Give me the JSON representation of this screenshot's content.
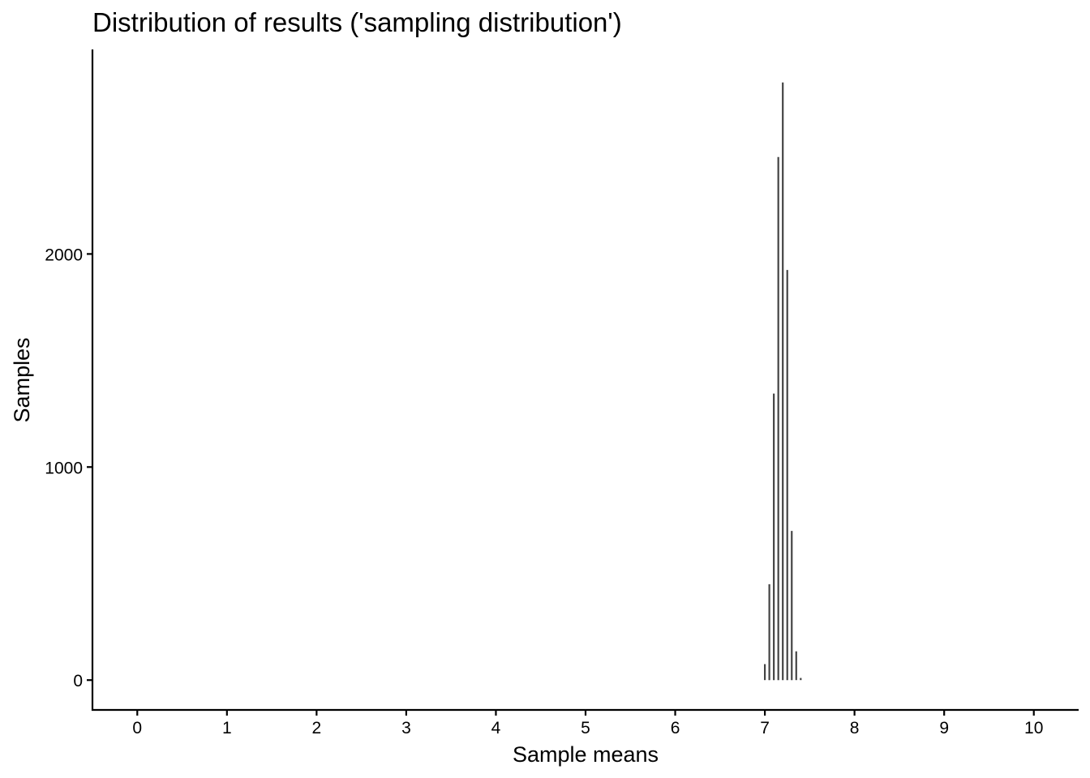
{
  "chart_data": {
    "type": "histogram",
    "title": "Distribution of results ('sampling distribution')",
    "xlabel": "Sample means",
    "ylabel": "Samples",
    "xlim": [
      -0.5,
      10.5
    ],
    "ylim": [
      -140,
      2960
    ],
    "x_ticks": [
      0,
      1,
      2,
      3,
      4,
      5,
      6,
      7,
      8,
      9,
      10
    ],
    "y_ticks": [
      0,
      1000,
      2000
    ],
    "grid": false,
    "legend": "none",
    "bar_color": "#444444",
    "bins": [
      {
        "x": 7.0,
        "count": 75
      },
      {
        "x": 7.05,
        "count": 450
      },
      {
        "x": 7.1,
        "count": 1345
      },
      {
        "x": 7.15,
        "count": 2455
      },
      {
        "x": 7.2,
        "count": 2805
      },
      {
        "x": 7.25,
        "count": 1925
      },
      {
        "x": 7.3,
        "count": 700
      },
      {
        "x": 7.35,
        "count": 135
      },
      {
        "x": 7.4,
        "count": 10
      }
    ]
  }
}
